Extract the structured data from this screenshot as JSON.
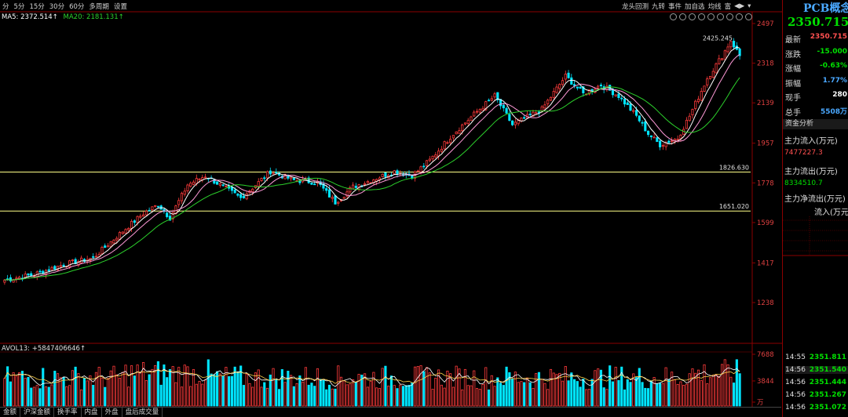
{
  "menu": {
    "left_items": [
      "分",
      "5分",
      "15分",
      "30分",
      "60分",
      "多周期",
      "设置"
    ],
    "right_items": [
      "龙头回测",
      "九转",
      "事件",
      "加自选",
      "均线",
      "富",
      "◀▶",
      "▾"
    ]
  },
  "indicators": {
    "ma5_label": "MA5: 2372.514↑",
    "ma20_label": "MA20: 2181.131↑",
    "vol_label": "AVOL13: +5847406646↑"
  },
  "tabs": [
    "金额",
    "沪深金额",
    "换手率",
    "内盘",
    "外盘",
    "盘后成交量"
  ],
  "colors": {
    "up": "#ff3b3b",
    "down": "#00e5ff",
    "ma5": "#ffffff",
    "ma10": "#ff9ad8",
    "ma20": "#2cd12c",
    "axis": "#8b0000",
    "hline": "#ffff88"
  },
  "panel": {
    "title": "PCB概念",
    "price": "2350.715",
    "stats": [
      {
        "label": "最新",
        "value": "2350.715",
        "color": "#ff5050"
      },
      {
        "label": "涨跌",
        "value": "-15.000",
        "color": "#00e000"
      },
      {
        "label": "涨幅",
        "value": "-0.63%",
        "color": "#00e000"
      },
      {
        "label": "振幅",
        "value": "1.77%",
        "color": "#4aa8ff"
      },
      {
        "label": "现手",
        "value": "280",
        "color": "#ffffff"
      },
      {
        "label": "总手",
        "value": "5508万",
        "color": "#4aa8ff"
      }
    ],
    "section": "资金分析",
    "inflow_label": "主力流入(万元)",
    "inflow_value": "7477227.3",
    "outflow_label": "主力流出(万元)",
    "outflow_value": "8334510.7",
    "net_label": "主力净流出(万元)",
    "net_sub": "流入(万元)",
    "ticks": [
      {
        "time": "14:55",
        "price": "2351.811"
      },
      {
        "time": "14:56",
        "price": "2351.540"
      },
      {
        "time": "14:56",
        "price": "2351.444"
      },
      {
        "time": "14:56",
        "price": "2351.267"
      },
      {
        "time": "14:56",
        "price": "2351.072"
      }
    ]
  },
  "chart_data": {
    "type": "candlestick",
    "price_axis_ticks": [
      "2497",
      "2318",
      "2139",
      "1957",
      "1778",
      "1599",
      "1417",
      "1238"
    ],
    "price_axis_values": [
      2497,
      2318,
      2139,
      1957,
      1778,
      1599,
      1417,
      1238
    ],
    "volume_axis_ticks": [
      "7688",
      "3844",
      "万"
    ],
    "volume_axis_values": [
      7688,
      3844
    ],
    "annotations": [
      {
        "text": "2425.245",
        "value": 2425.245
      },
      {
        "text": "1826.630",
        "value": 1826.63
      },
      {
        "text": "1651.020",
        "value": 1651.02
      }
    ],
    "ohlc_anchors": [
      [
        0,
        1340
      ],
      [
        10,
        1365
      ],
      [
        20,
        1410
      ],
      [
        30,
        1440
      ],
      [
        40,
        1560
      ],
      [
        47,
        1640
      ],
      [
        52,
        1680
      ],
      [
        56,
        1620
      ],
      [
        62,
        1770
      ],
      [
        68,
        1810
      ],
      [
        74,
        1760
      ],
      [
        80,
        1710
      ],
      [
        86,
        1780
      ],
      [
        90,
        1830
      ],
      [
        98,
        1790
      ],
      [
        106,
        1780
      ],
      [
        112,
        1690
      ],
      [
        118,
        1760
      ],
      [
        124,
        1790
      ],
      [
        132,
        1830
      ],
      [
        138,
        1810
      ],
      [
        144,
        1880
      ],
      [
        152,
        2000
      ],
      [
        160,
        2100
      ],
      [
        166,
        2170
      ],
      [
        172,
        2040
      ],
      [
        182,
        2110
      ],
      [
        190,
        2260
      ],
      [
        196,
        2180
      ],
      [
        202,
        2220
      ],
      [
        208,
        2170
      ],
      [
        214,
        2080
      ],
      [
        218,
        2000
      ],
      [
        222,
        1950
      ],
      [
        228,
        1980
      ],
      [
        232,
        2080
      ],
      [
        238,
        2250
      ],
      [
        243,
        2350
      ],
      [
        246,
        2420
      ],
      [
        249,
        2352
      ]
    ],
    "volume_range": [
      2400,
      7600
    ]
  }
}
